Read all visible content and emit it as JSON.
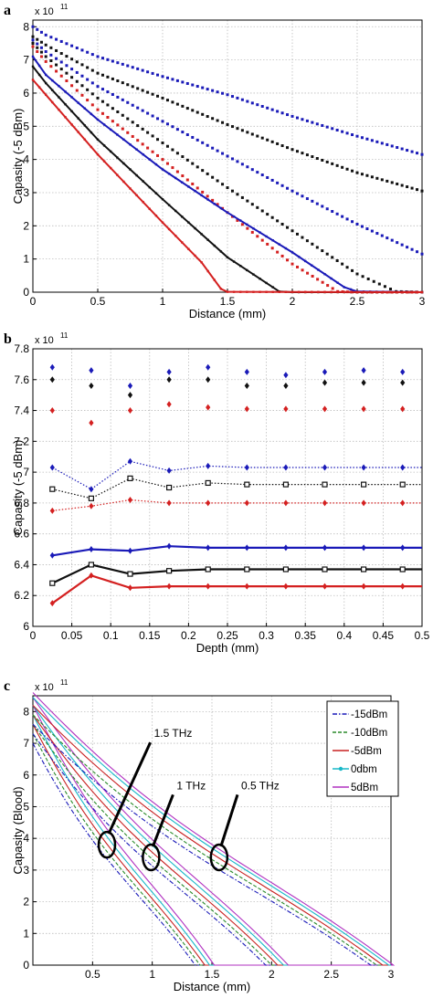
{
  "chart_data": [
    {
      "panel_label": "a",
      "type": "line",
      "exponent_label": "x 10",
      "exponent_power": "11",
      "xlabel": "Distance (mm)",
      "ylabel": "Capasity (-5 dBm)",
      "xlim": [
        0,
        3
      ],
      "ylim": [
        0,
        8.2
      ],
      "xticks": [
        0,
        0.5,
        1,
        1.5,
        2,
        2.5,
        3
      ],
      "xtick_labels": [
        "0",
        "0.5",
        "1",
        "1.5",
        "2",
        "2.5",
        "3"
      ],
      "yticks": [
        0,
        1,
        2,
        3,
        4,
        5,
        6,
        7,
        8
      ],
      "ytick_labels": [
        "0",
        "1",
        "2",
        "3",
        "4",
        "5",
        "6",
        "7",
        "8"
      ],
      "grid": true,
      "colors": {
        "blue": "#1a1ab8",
        "black": "#111111",
        "red": "#d42020"
      },
      "series": [
        {
          "color": "blue",
          "style": "dotted",
          "x": [
            0,
            0.1,
            0.5,
            1,
            1.5,
            2,
            2.5,
            3
          ],
          "values": [
            8.0,
            7.75,
            7.1,
            6.5,
            5.95,
            5.3,
            4.7,
            4.15
          ]
        },
        {
          "color": "black",
          "style": "dotted",
          "x": [
            0,
            0.1,
            0.5,
            1,
            1.5,
            2,
            2.5,
            3
          ],
          "values": [
            7.7,
            7.45,
            6.6,
            5.85,
            5.05,
            4.3,
            3.6,
            3.05
          ]
        },
        {
          "color": "blue",
          "style": "dotted",
          "x": [
            0,
            0.1,
            0.5,
            1,
            1.5,
            2,
            2.5,
            3
          ],
          "values": [
            7.6,
            7.25,
            6.2,
            5.15,
            4.1,
            3.05,
            2.05,
            1.15
          ]
        },
        {
          "color": "black",
          "style": "dotted",
          "x": [
            0,
            0.1,
            0.5,
            1,
            1.5,
            2,
            2.5,
            2.8,
            3
          ],
          "values": [
            7.5,
            7.1,
            5.85,
            4.5,
            3.15,
            1.85,
            0.55,
            0.02,
            0
          ]
        },
        {
          "color": "red",
          "style": "dotted",
          "x": [
            0,
            0.1,
            0.5,
            1,
            1.5,
            2,
            2.35,
            2.5,
            3
          ],
          "values": [
            7.4,
            6.95,
            5.5,
            4.0,
            2.4,
            0.85,
            0.02,
            0,
            0
          ]
        },
        {
          "color": "blue",
          "style": "solid",
          "x": [
            0,
            0.1,
            0.5,
            1,
            1.5,
            2,
            2.4,
            2.5,
            3
          ],
          "values": [
            7.1,
            6.55,
            5.2,
            3.7,
            2.4,
            1.2,
            0.15,
            0.02,
            0
          ]
        },
        {
          "color": "black",
          "style": "solid",
          "x": [
            0,
            0.1,
            0.5,
            1,
            1.5,
            1.9,
            2,
            3
          ],
          "values": [
            6.8,
            6.3,
            4.6,
            2.8,
            1.05,
            0.02,
            0,
            0
          ]
        },
        {
          "color": "red",
          "style": "solid",
          "x": [
            0,
            0.1,
            0.5,
            1,
            1.3,
            1.45,
            1.5,
            3
          ],
          "values": [
            6.4,
            5.95,
            4.15,
            2.1,
            0.9,
            0.1,
            0.01,
            0
          ]
        }
      ]
    },
    {
      "panel_label": "b",
      "type": "line",
      "exponent_label": "x 10",
      "exponent_power": "11",
      "xlabel": "Depth (mm)",
      "ylabel": "Capasity (-5 dBm)",
      "xlim": [
        0,
        0.5
      ],
      "ylim": [
        6.0,
        7.8
      ],
      "xticks": [
        0,
        0.05,
        0.1,
        0.15,
        0.2,
        0.25,
        0.3,
        0.35,
        0.4,
        0.45,
        0.5
      ],
      "xtick_labels": [
        "0",
        "0.05",
        "0.1",
        "0.15",
        "0.2",
        "0.25",
        "0.3",
        "0.35",
        "0.4",
        "0.45",
        "0.5"
      ],
      "yticks": [
        6.0,
        6.2,
        6.4,
        6.6,
        6.8,
        7.0,
        7.2,
        7.4,
        7.6,
        7.8
      ],
      "ytick_labels": [
        "6",
        "6.2",
        "6.4",
        "6.6",
        "6.8",
        "7",
        "7.2",
        "7.4",
        "7.6",
        "7.8"
      ],
      "grid": true,
      "colors": {
        "blue": "#1a1ab8",
        "black": "#111111",
        "red": "#d42020"
      },
      "series": [
        {
          "color": "blue",
          "style": "diamond-only",
          "x": [
            0.025,
            0.075,
            0.125,
            0.175,
            0.225,
            0.275,
            0.325,
            0.375,
            0.425,
            0.475
          ],
          "values": [
            7.68,
            7.66,
            7.56,
            7.65,
            7.68,
            7.65,
            7.63,
            7.65,
            7.66,
            7.65
          ]
        },
        {
          "color": "black",
          "style": "diamond-only",
          "x": [
            0.025,
            0.075,
            0.125,
            0.175,
            0.225,
            0.275,
            0.325,
            0.375,
            0.425,
            0.475
          ],
          "values": [
            7.6,
            7.56,
            7.5,
            7.6,
            7.6,
            7.56,
            7.56,
            7.58,
            7.58,
            7.58
          ]
        },
        {
          "color": "red",
          "style": "diamond-only",
          "x": [
            0.025,
            0.075,
            0.125,
            0.175,
            0.225,
            0.275,
            0.325,
            0.375,
            0.425,
            0.475
          ],
          "values": [
            7.4,
            7.32,
            7.4,
            7.44,
            7.42,
            7.41,
            7.41,
            7.41,
            7.41,
            7.41
          ]
        },
        {
          "color": "blue",
          "style": "dotted-diamond",
          "x": [
            0.025,
            0.075,
            0.125,
            0.175,
            0.225,
            0.275,
            0.325,
            0.375,
            0.425,
            0.475
          ],
          "values": [
            7.03,
            6.89,
            7.07,
            7.01,
            7.04,
            7.03,
            7.03,
            7.03,
            7.03,
            7.03
          ]
        },
        {
          "color": "black",
          "style": "dotted-square",
          "x": [
            0.025,
            0.075,
            0.125,
            0.175,
            0.225,
            0.275,
            0.325,
            0.375,
            0.425,
            0.475
          ],
          "values": [
            6.89,
            6.83,
            6.96,
            6.9,
            6.93,
            6.92,
            6.92,
            6.92,
            6.92,
            6.92
          ]
        },
        {
          "color": "red",
          "style": "dotted-diamond",
          "x": [
            0.025,
            0.075,
            0.125,
            0.175,
            0.225,
            0.275,
            0.325,
            0.375,
            0.425,
            0.475
          ],
          "values": [
            6.75,
            6.78,
            6.82,
            6.8,
            6.8,
            6.8,
            6.8,
            6.8,
            6.8,
            6.8
          ]
        },
        {
          "color": "blue",
          "style": "solid-diamond",
          "x": [
            0.025,
            0.075,
            0.125,
            0.175,
            0.225,
            0.275,
            0.325,
            0.375,
            0.425,
            0.475
          ],
          "values": [
            6.46,
            6.5,
            6.49,
            6.52,
            6.51,
            6.51,
            6.51,
            6.51,
            6.51,
            6.51
          ]
        },
        {
          "color": "black",
          "style": "solid-square",
          "x": [
            0.025,
            0.075,
            0.125,
            0.175,
            0.225,
            0.275,
            0.325,
            0.375,
            0.425,
            0.475
          ],
          "values": [
            6.28,
            6.4,
            6.34,
            6.36,
            6.37,
            6.37,
            6.37,
            6.37,
            6.37,
            6.37
          ]
        },
        {
          "color": "red",
          "style": "solid-diamond",
          "x": [
            0.025,
            0.075,
            0.125,
            0.175,
            0.225,
            0.275,
            0.325,
            0.375,
            0.425,
            0.475
          ],
          "values": [
            6.15,
            6.33,
            6.25,
            6.26,
            6.26,
            6.26,
            6.26,
            6.26,
            6.26,
            6.26
          ]
        }
      ]
    },
    {
      "panel_label": "c",
      "type": "line",
      "exponent_label": "x 10",
      "exponent_power": "11",
      "xlabel": "Distance (mm)",
      "ylabel": "Capasity (Blood)",
      "xlim": [
        0,
        3
      ],
      "ylim": [
        0,
        8.5
      ],
      "xticks": [
        0.5,
        1,
        1.5,
        2,
        2.5,
        3
      ],
      "xtick_labels": [
        "0.5",
        "1",
        "1.5",
        "2",
        "2.5",
        "3"
      ],
      "yticks": [
        0,
        1,
        2,
        3,
        4,
        5,
        6,
        7,
        8
      ],
      "ytick_labels": [
        "0",
        "1",
        "2",
        "3",
        "4",
        "5",
        "6",
        "7",
        "8"
      ],
      "grid": true,
      "legend": {
        "placement": "top-right",
        "entries": [
          {
            "label": "-15dBm",
            "color": "#1a1ab8",
            "style": "dashdot"
          },
          {
            "label": "-10dBm",
            "color": "#2a8a2a",
            "style": "dashed"
          },
          {
            "label": "-5dBm",
            "color": "#c82020",
            "style": "solid"
          },
          {
            "label": "0dbm",
            "color": "#18b8c8",
            "style": "solid-marker"
          },
          {
            "label": "5dBm",
            "color": "#b030c0",
            "style": "solid"
          }
        ]
      },
      "annotations": [
        {
          "text": "1.5 THz",
          "x": 0.62,
          "y": 3.8
        },
        {
          "text": "1 THz",
          "x": 1.0,
          "y": 3.4
        },
        {
          "text": "0.5 THz",
          "x": 1.55,
          "y": 3.4
        }
      ],
      "groups": [
        {
          "name": "1.5 THz",
          "end_x": 1.5,
          "start_values": [
            7.0,
            7.3,
            7.6,
            7.9,
            8.2
          ],
          "zero_x": [
            1.36,
            1.4,
            1.44,
            1.48,
            1.52
          ]
        },
        {
          "name": "1 THz",
          "end_x": 2.1,
          "start_values": [
            7.3,
            7.6,
            7.9,
            8.2,
            8.45
          ],
          "zero_x": [
            1.95,
            2.0,
            2.05,
            2.1,
            2.14
          ]
        },
        {
          "name": "0.5 THz",
          "end_x": 3.0,
          "start_values": [
            7.6,
            7.9,
            8.2,
            8.45,
            8.6
          ],
          "zero_x": [
            2.83,
            2.88,
            2.93,
            2.98,
            3.02
          ]
        }
      ]
    }
  ]
}
